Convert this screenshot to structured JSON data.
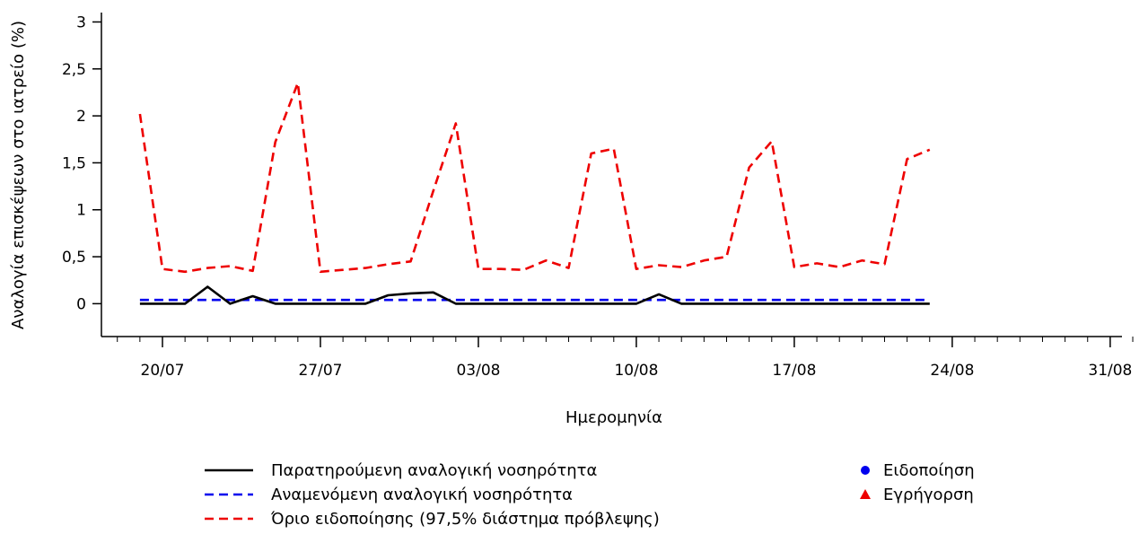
{
  "chart_data": {
    "type": "line",
    "xlabel": "Ημερομηνία",
    "ylabel": "Αναλογία επισκέψεων στο ιατρείο (%)",
    "ylim": [
      -0.35,
      3.1
    ],
    "yticks": [
      0,
      0.5,
      1,
      1.5,
      2,
      2.5,
      3
    ],
    "ytick_labels": [
      "0",
      "0,5",
      "1",
      "1,5",
      "2",
      "2,5",
      "3"
    ],
    "x_start": "2025-07-17",
    "xlim": [
      "2025-07-17",
      "2025-09-01"
    ],
    "xticks": [
      "20/07",
      "27/07",
      "03/08",
      "10/08",
      "17/08",
      "24/08",
      "31/08"
    ],
    "x": [
      "19/07",
      "20/07",
      "21/07",
      "22/07",
      "23/07",
      "24/07",
      "25/07",
      "26/07",
      "27/07",
      "28/07",
      "29/07",
      "30/07",
      "31/07",
      "01/08",
      "02/08",
      "03/08",
      "04/08",
      "05/08",
      "06/08",
      "07/08",
      "08/08",
      "09/08",
      "10/08",
      "11/08",
      "12/08",
      "13/08",
      "14/08",
      "15/08",
      "16/08",
      "17/08",
      "18/08",
      "19/08",
      "20/08",
      "21/08",
      "22/08",
      "23/08"
    ],
    "series": [
      {
        "name": "Παρατηρούμενη αναλογική νοσηρότητα",
        "color": "#000000",
        "style": "solid",
        "values": [
          0,
          0,
          0,
          0.18,
          0,
          0.08,
          0,
          0,
          0,
          0,
          0,
          0.09,
          0.11,
          0.12,
          0,
          0,
          0,
          0,
          0,
          0,
          0,
          0,
          0,
          0.1,
          0,
          0,
          0,
          0,
          0,
          0,
          0,
          0,
          0,
          0,
          0,
          0
        ]
      },
      {
        "name": "Αναμενόμενη αναλογική νοσηρότητα",
        "color": "#0000ee",
        "style": "dashed",
        "values": [
          0.04,
          0.04,
          0.04,
          0.04,
          0.04,
          0.04,
          0.04,
          0.04,
          0.04,
          0.04,
          0.04,
          0.04,
          0.04,
          0.04,
          0.04,
          0.04,
          0.04,
          0.04,
          0.04,
          0.04,
          0.04,
          0.04,
          0.04,
          0.04,
          0.04,
          0.04,
          0.04,
          0.04,
          0.04,
          0.04,
          0.04,
          0.04,
          0.04,
          0.04,
          0.04,
          0.04
        ]
      },
      {
        "name": "Όριο ειδοποίησης (97,5% διάστημα πρόβλεψης)",
        "color": "#ee0000",
        "style": "dashed",
        "values": [
          2.02,
          0.37,
          0.34,
          0.38,
          0.4,
          0.35,
          1.72,
          2.35,
          0.34,
          0.36,
          0.38,
          0.42,
          0.45,
          1.2,
          1.92,
          0.37,
          0.37,
          0.36,
          0.46,
          0.38,
          1.6,
          1.65,
          0.37,
          0.41,
          0.39,
          0.46,
          0.5,
          1.45,
          1.73,
          0.39,
          0.43,
          0.39,
          0.46,
          0.42,
          1.54,
          1.64
        ]
      }
    ],
    "markers": [
      {
        "name": "Ειδοποίηση",
        "color": "#0000ee",
        "shape": "circle"
      },
      {
        "name": "Εγρήγορση",
        "color": "#ee0000",
        "shape": "triangle"
      }
    ],
    "legend_placement": "bottom",
    "grid": false
  }
}
